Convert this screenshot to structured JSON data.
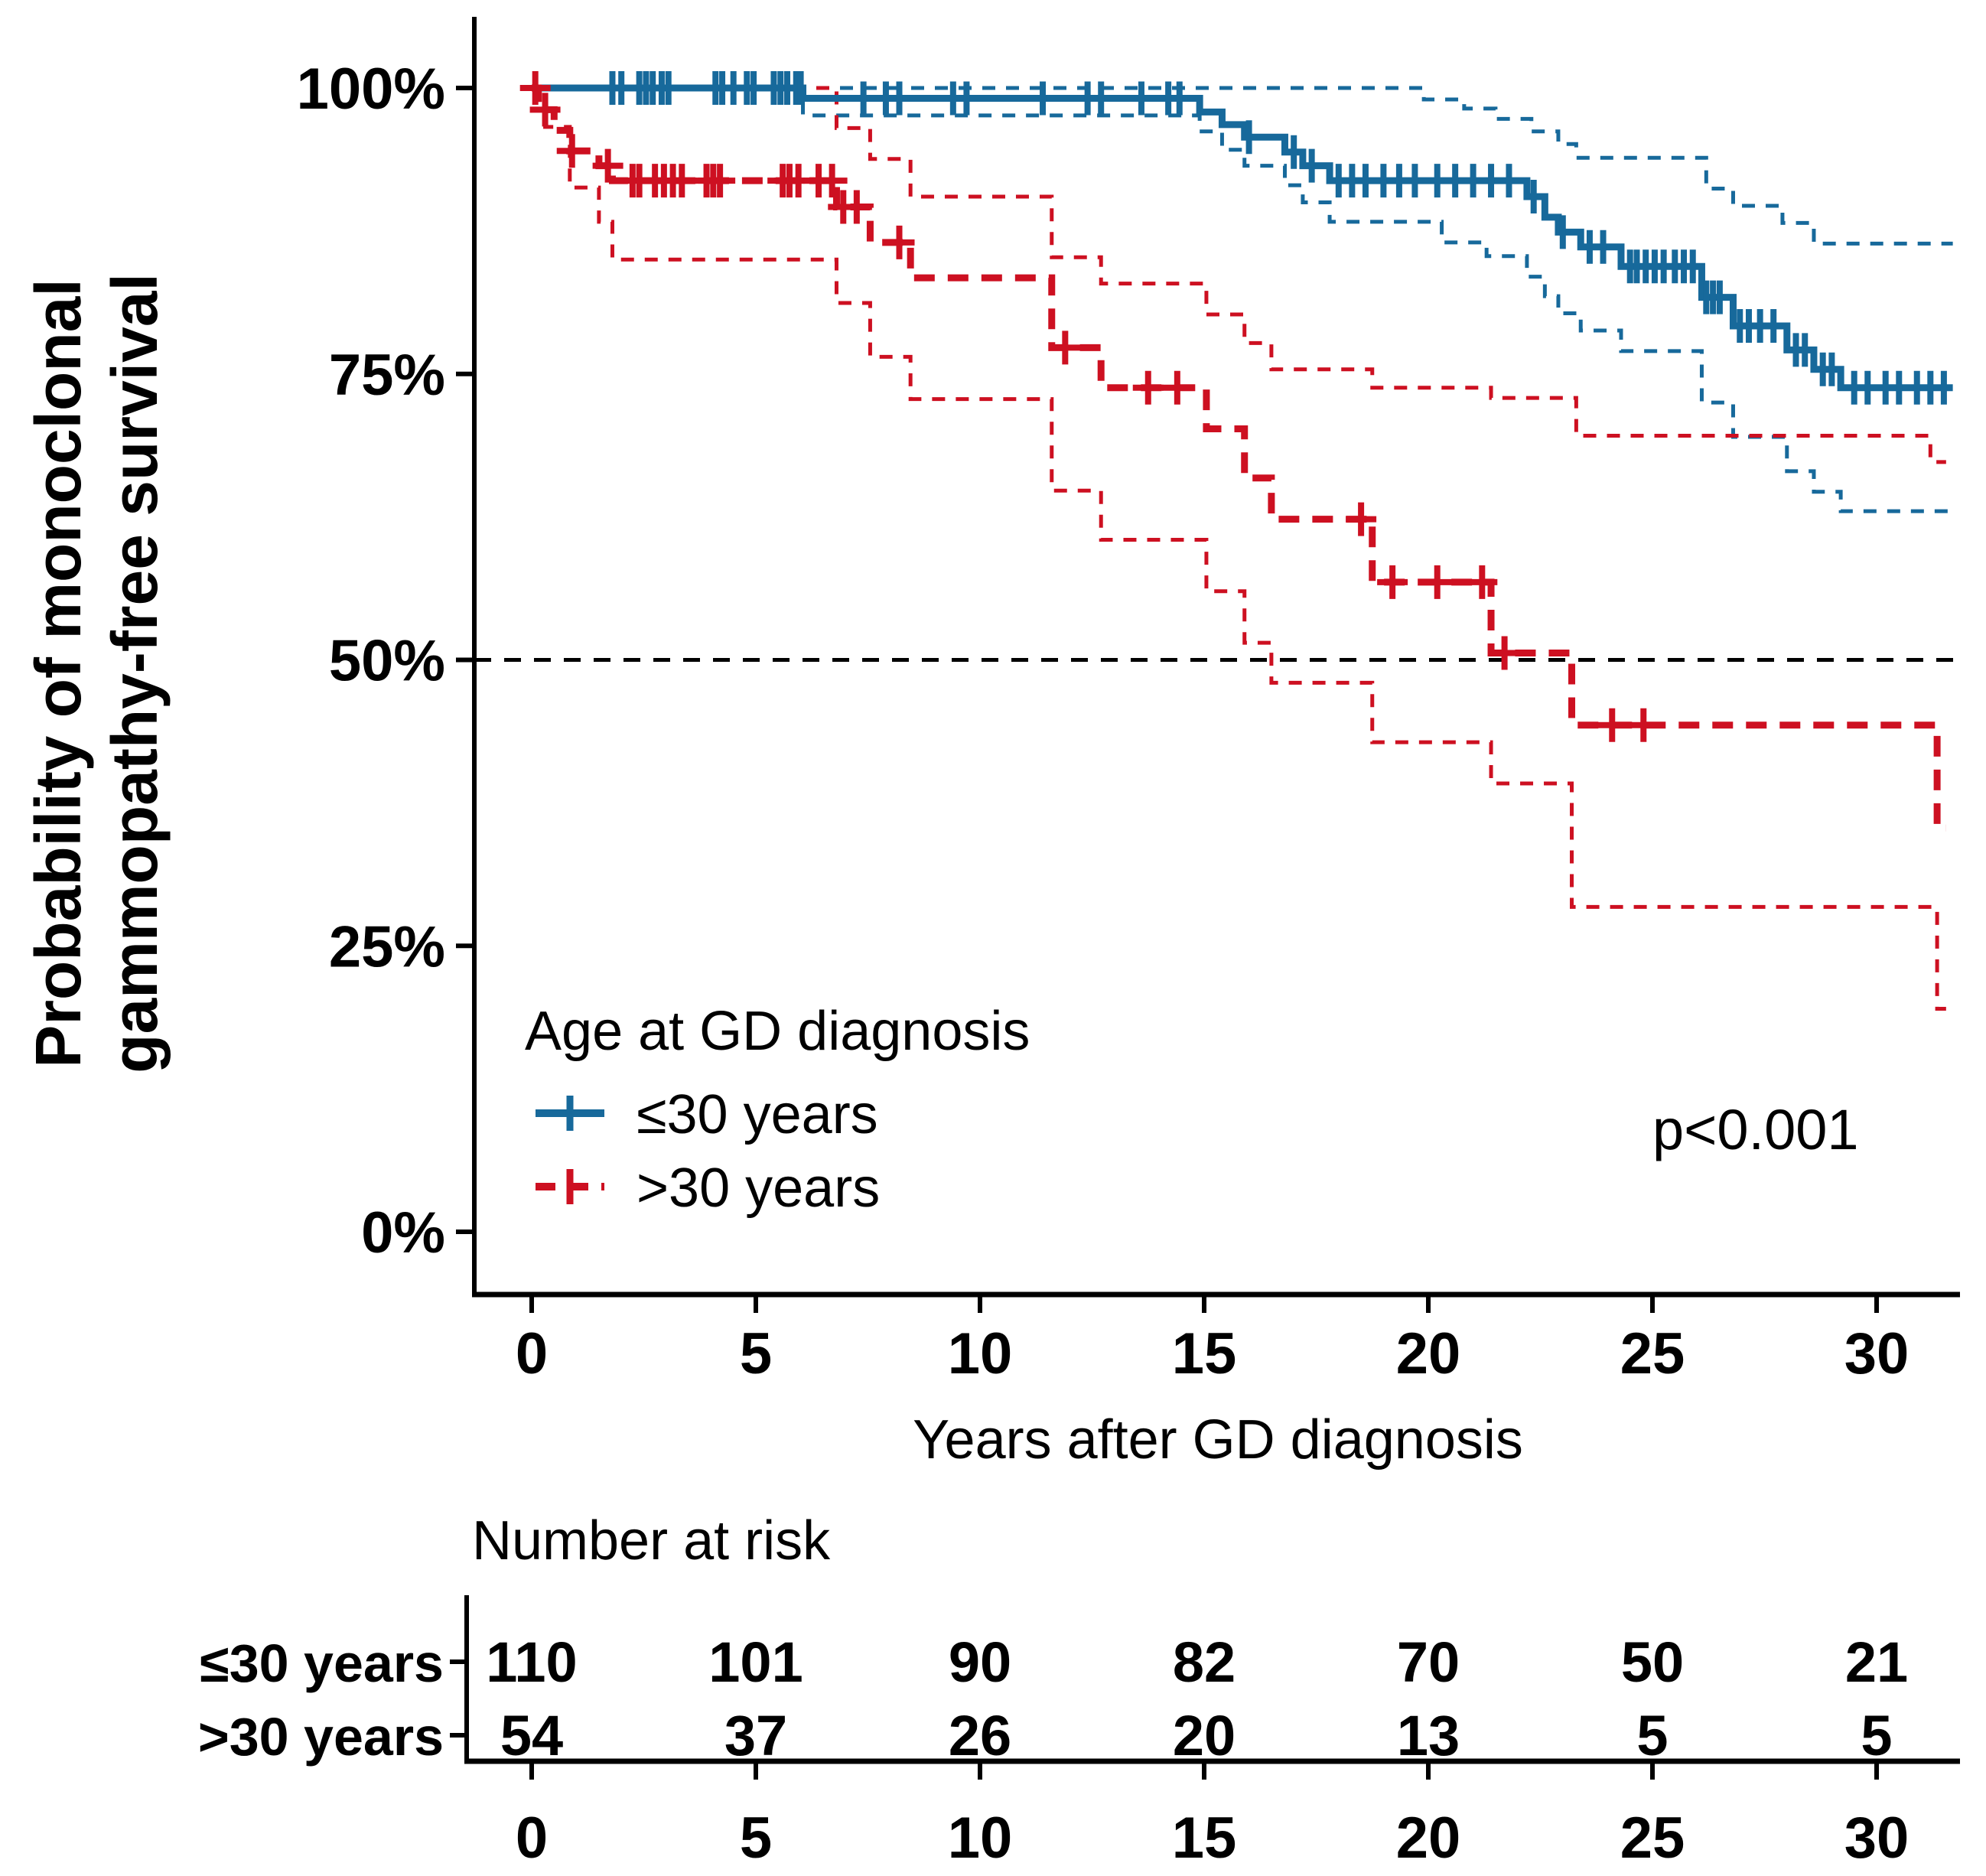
{
  "figure": {
    "colors": {
      "blue": "#17699b",
      "red": "#cd1021",
      "black": "#000000"
    }
  },
  "y_axis": {
    "title_line1": "Probability of monoclonal",
    "title_line2": "gammopathy-free survival",
    "tick_labels": [
      "100%",
      "75%",
      "50%",
      "25%",
      "0%"
    ],
    "tick_values": [
      100,
      75,
      50,
      25,
      0
    ]
  },
  "x_axis": {
    "title": "Years after GD diagnosis",
    "tick_labels": [
      "0",
      "5",
      "10",
      "15",
      "20",
      "25",
      "30"
    ],
    "tick_values": [
      0,
      5,
      10,
      15,
      20,
      25,
      30
    ]
  },
  "legend": {
    "title": "Age at GD diagnosis",
    "items": [
      {
        "label": "≤30 years",
        "color": "#17699b",
        "line": "solid"
      },
      {
        "label": ">30 years",
        "color": "#cd1021",
        "line": "dashed"
      }
    ]
  },
  "annotation": {
    "p_value": "p<0.001"
  },
  "risk_table": {
    "title": "Number at risk",
    "time_points": [
      0,
      5,
      10,
      15,
      20,
      25,
      30
    ],
    "tick_labels": [
      "0",
      "5",
      "10",
      "15",
      "20",
      "25",
      "30"
    ],
    "rows": [
      {
        "label": "≤30 years",
        "color": "#17699b",
        "counts": [
          "110",
          "101",
          "90",
          "82",
          "70",
          "50",
          "21"
        ]
      },
      {
        "label": ">30 years",
        "color": "#cd1021",
        "counts": [
          "54",
          "37",
          "26",
          "20",
          "13",
          "5",
          "5"
        ]
      }
    ]
  },
  "chart_data": {
    "type": "line",
    "subtype": "kaplan-meier-step",
    "xlabel": "Years after GD diagnosis",
    "ylabel": "Probability of monoclonal gammopathy-free survival",
    "xlim": [
      0,
      31.7
    ],
    "ylim": [
      0,
      100
    ],
    "x_ticks": [
      0,
      5,
      10,
      15,
      20,
      25,
      30
    ],
    "y_ticks_pct": [
      100,
      75,
      50,
      25,
      0
    ],
    "reference_line_pct": 50,
    "legend_position": "inside-bottom-left",
    "p_value": "p<0.001",
    "series": [
      {
        "name": "≤30 years",
        "kind": "estimate",
        "color": "#17699b",
        "line": "solid",
        "width": 9,
        "steps": [
          [
            0,
            100
          ],
          [
            6.05,
            99.1
          ],
          [
            14.9,
            97.9
          ],
          [
            15.4,
            96.8
          ],
          [
            15.9,
            95.7
          ],
          [
            16.8,
            94.4
          ],
          [
            17.2,
            93.2
          ],
          [
            17.8,
            91.9
          ],
          [
            22.2,
            90.5
          ],
          [
            22.6,
            88.7
          ],
          [
            22.9,
            87.4
          ],
          [
            23.4,
            86.1
          ],
          [
            24.3,
            84.4
          ],
          [
            26.1,
            81.7
          ],
          [
            26.8,
            79.2
          ],
          [
            28.0,
            77.1
          ],
          [
            28.6,
            75.4
          ],
          [
            29.2,
            73.8
          ],
          [
            31.7,
            73.8
          ]
        ],
        "censor_times": [
          1.8,
          2.0,
          2.4,
          2.55,
          2.7,
          2.9,
          3.05,
          4.1,
          4.25,
          4.5,
          4.8,
          4.95,
          5.4,
          5.55,
          5.7,
          5.9,
          6.0,
          7.4,
          7.9,
          8.2,
          9.4,
          9.7,
          11.4,
          12.4,
          12.7,
          13.6,
          14.2,
          14.45,
          16.0,
          17.0,
          17.4,
          18.0,
          18.3,
          18.6,
          19.0,
          19.35,
          19.7,
          20.2,
          20.6,
          21.0,
          21.4,
          21.8,
          22.35,
          23.0,
          23.6,
          23.9,
          24.5,
          24.65,
          24.85,
          25.05,
          25.25,
          25.5,
          25.7,
          25.9,
          26.2,
          26.35,
          26.5,
          26.95,
          27.15,
          27.4,
          27.7,
          28.2,
          28.4,
          28.8,
          29.0,
          29.5,
          29.8,
          30.2,
          30.5,
          30.9,
          31.2,
          31.5
        ]
      },
      {
        "name": "≤30 years upper 95% CI",
        "kind": "ci_upper",
        "color": "#17699b",
        "line": "dashed",
        "width": 5,
        "steps": [
          [
            0,
            100
          ],
          [
            19.9,
            100
          ],
          [
            19.9,
            99.0
          ],
          [
            20.8,
            98.2
          ],
          [
            21.5,
            97.3
          ],
          [
            22.3,
            96.2
          ],
          [
            22.9,
            95.1
          ],
          [
            23.3,
            93.9
          ],
          [
            26.2,
            91.2
          ],
          [
            26.8,
            89.7
          ],
          [
            27.9,
            88.2
          ],
          [
            28.6,
            86.4
          ],
          [
            31.7,
            86.4
          ]
        ]
      },
      {
        "name": "≤30 years lower 95% CI",
        "kind": "ci_lower",
        "color": "#17699b",
        "line": "dashed",
        "width": 5,
        "steps": [
          [
            0,
            100
          ],
          [
            6.05,
            97.6
          ],
          [
            14.9,
            96.2
          ],
          [
            15.4,
            94.6
          ],
          [
            15.9,
            93.2
          ],
          [
            16.8,
            91.5
          ],
          [
            17.2,
            90.0
          ],
          [
            17.8,
            88.3
          ],
          [
            20.3,
            86.5
          ],
          [
            21.3,
            85.3
          ],
          [
            22.2,
            83.5
          ],
          [
            22.6,
            81.8
          ],
          [
            22.9,
            80.3
          ],
          [
            23.4,
            78.8
          ],
          [
            24.3,
            77.0
          ],
          [
            26.1,
            72.5
          ],
          [
            26.8,
            69.5
          ],
          [
            28.0,
            66.5
          ],
          [
            28.6,
            64.7
          ],
          [
            29.2,
            63.0
          ],
          [
            31.7,
            63.0
          ]
        ]
      },
      {
        "name": ">30 years",
        "kind": "estimate",
        "color": "#cd1021",
        "line": "dashed-bold",
        "width": 9,
        "steps": [
          [
            0,
            100
          ],
          [
            0.15,
            98.1
          ],
          [
            0.5,
            96.3
          ],
          [
            0.85,
            94.5
          ],
          [
            1.5,
            93.2
          ],
          [
            1.8,
            91.9
          ],
          [
            6.8,
            89.6
          ],
          [
            7.55,
            86.5
          ],
          [
            8.45,
            83.4
          ],
          [
            11.6,
            77.3
          ],
          [
            12.7,
            73.8
          ],
          [
            15.05,
            70.2
          ],
          [
            15.9,
            65.9
          ],
          [
            16.5,
            62.3
          ],
          [
            18.75,
            56.8
          ],
          [
            21.4,
            50.6
          ],
          [
            23.2,
            44.3
          ],
          [
            31.35,
            35.3
          ],
          [
            31.55,
            35.3
          ]
        ],
        "censor_times": [
          0.08,
          0.3,
          0.9,
          1.7,
          2.25,
          2.4,
          2.75,
          2.95,
          3.15,
          3.35,
          3.9,
          4.05,
          4.2,
          5.6,
          5.75,
          5.95,
          6.4,
          6.7,
          6.95,
          7.25,
          8.2,
          11.9,
          13.75,
          14.4,
          18.5,
          19.2,
          20.2,
          21.2,
          21.7,
          24.1,
          24.8
        ]
      },
      {
        "name": ">30 years upper 95% CI",
        "kind": "ci_upper",
        "color": "#cd1021",
        "line": "dashed",
        "width": 5,
        "steps": [
          [
            0,
            100
          ],
          [
            6.8,
            100
          ],
          [
            6.8,
            96.5
          ],
          [
            7.55,
            93.8
          ],
          [
            8.45,
            90.5
          ],
          [
            11.6,
            85.2
          ],
          [
            12.7,
            82.9
          ],
          [
            15.05,
            80.2
          ],
          [
            15.9,
            77.7
          ],
          [
            16.5,
            75.4
          ],
          [
            18.75,
            73.8
          ],
          [
            21.4,
            72.9
          ],
          [
            23.3,
            69.6
          ],
          [
            31.2,
            69.6
          ],
          [
            31.2,
            67.3
          ],
          [
            31.55,
            67.3
          ]
        ]
      },
      {
        "name": ">30 years lower 95% CI",
        "kind": "ci_lower",
        "color": "#cd1021",
        "line": "dashed",
        "width": 5,
        "steps": [
          [
            0,
            100
          ],
          [
            0.3,
            96.6
          ],
          [
            0.85,
            91.3
          ],
          [
            1.5,
            88.3
          ],
          [
            1.8,
            85.0
          ],
          [
            6.8,
            81.2
          ],
          [
            7.55,
            76.5
          ],
          [
            8.45,
            72.8
          ],
          [
            11.6,
            64.8
          ],
          [
            12.7,
            60.5
          ],
          [
            15.05,
            56.0
          ],
          [
            15.9,
            51.5
          ],
          [
            16.5,
            48.0
          ],
          [
            18.75,
            42.8
          ],
          [
            21.4,
            39.2
          ],
          [
            23.2,
            28.4
          ],
          [
            31.35,
            19.5
          ],
          [
            31.55,
            19.5
          ]
        ]
      }
    ],
    "risk_table": {
      "title": "Number at risk",
      "time_points": [
        0,
        5,
        10,
        15,
        20,
        25,
        30
      ],
      "groups": [
        {
          "name": "≤30 years",
          "counts": [
            110,
            101,
            90,
            82,
            70,
            50,
            21
          ]
        },
        {
          "name": ">30 years",
          "counts": [
            54,
            37,
            26,
            20,
            13,
            5,
            5
          ]
        }
      ]
    }
  }
}
